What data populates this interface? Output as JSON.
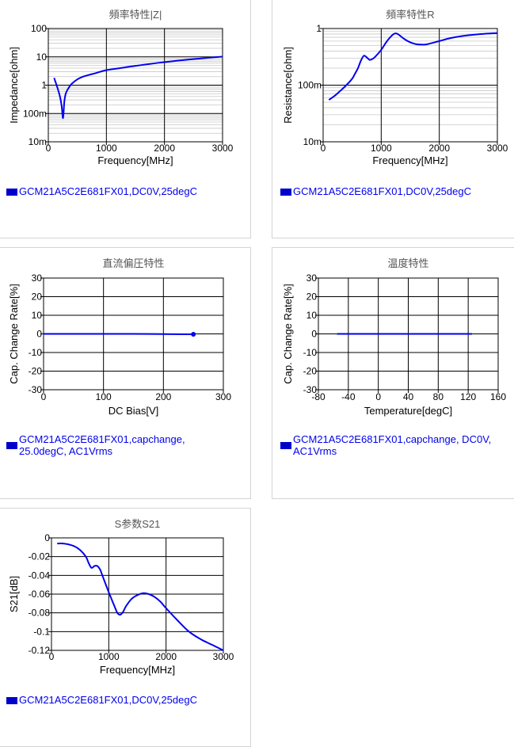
{
  "colors": {
    "line": "#0000ee",
    "legend_swatch": "#0000cc",
    "legend_text": "#0000ee",
    "title": "#555555",
    "axis_text": "#000000",
    "border": "#d4d4d4"
  },
  "chart_data": [
    {
      "id": "impedance",
      "type": "line",
      "title": "頻率特性|Z|",
      "xlabel": "Frequency[MHz]",
      "ylabel": "Impedance[ohm]",
      "yscale": "log",
      "xlim": [
        0,
        3000
      ],
      "ylim": [
        0.01,
        100
      ],
      "xticks": [
        0,
        1000,
        2000,
        3000
      ],
      "xtick_labels": [
        "0",
        "1000",
        "2000",
        "3000"
      ],
      "yticks": [
        0.01,
        0.1,
        1,
        10,
        100
      ],
      "ytick_labels": [
        "10m",
        "100m",
        "1",
        "10",
        "100"
      ],
      "grid": true,
      "legend": "GCM21A5C2E681FX01,DC0V,25degC",
      "x": [
        100,
        150,
        200,
        230,
        250,
        262,
        275,
        300,
        350,
        400,
        500,
        600,
        700,
        800,
        900,
        1000,
        1200,
        1500,
        2000,
        2500,
        3000
      ],
      "y": [
        1.8,
        0.9,
        0.4,
        0.18,
        0.07,
        0.1,
        0.25,
        0.5,
        0.8,
        1.1,
        1.6,
        2.0,
        2.3,
        2.6,
        3.0,
        3.4,
        3.9,
        4.8,
        6.5,
        8.3,
        10.2
      ]
    },
    {
      "id": "resistance",
      "type": "line",
      "title": "頻率特性R",
      "xlabel": "Frequency[MHz]",
      "ylabel": "Resistance[ohm]",
      "yscale": "log",
      "xlim": [
        0,
        3000
      ],
      "ylim": [
        0.01,
        1
      ],
      "xticks": [
        0,
        1000,
        2000,
        3000
      ],
      "xtick_labels": [
        "0",
        "1000",
        "2000",
        "3000"
      ],
      "yticks": [
        0.01,
        0.1,
        1
      ],
      "ytick_labels": [
        "10m",
        "100m",
        "1"
      ],
      "grid": true,
      "legend": "GCM21A5C2E681FX01,DC0V,25degC",
      "x": [
        100,
        200,
        300,
        400,
        500,
        550,
        600,
        650,
        700,
        750,
        800,
        850,
        900,
        1000,
        1100,
        1200,
        1250,
        1300,
        1400,
        1500,
        1600,
        1700,
        1800,
        2000,
        2200,
        2500,
        2800,
        3000
      ],
      "y": [
        0.055,
        0.065,
        0.08,
        0.1,
        0.13,
        0.16,
        0.2,
        0.27,
        0.33,
        0.31,
        0.28,
        0.29,
        0.32,
        0.42,
        0.6,
        0.78,
        0.82,
        0.78,
        0.65,
        0.57,
        0.53,
        0.52,
        0.53,
        0.6,
        0.68,
        0.76,
        0.81,
        0.83
      ]
    },
    {
      "id": "dc-bias",
      "type": "line",
      "title": "直流偏圧特性",
      "xlabel": "DC Bias[V]",
      "ylabel": "Cap. Change Rate[%]",
      "xlim": [
        0,
        300
      ],
      "ylim": [
        -30,
        30
      ],
      "xticks": [
        0,
        100,
        200,
        300
      ],
      "xtick_labels": [
        "0",
        "100",
        "200",
        "300"
      ],
      "yticks": [
        -30,
        -20,
        -10,
        0,
        10,
        20,
        30
      ],
      "ytick_labels": [
        "-30",
        "-20",
        "-10",
        "0",
        "10",
        "20",
        "30"
      ],
      "grid": true,
      "legend": "GCM21A5C2E681FX01,capchange, 25.0degC, AC1Vrms",
      "x": [
        0,
        50,
        100,
        150,
        200,
        250
      ],
      "y": [
        0,
        0,
        0,
        0,
        -0.1,
        -0.2
      ],
      "end_marker": true
    },
    {
      "id": "temperature",
      "type": "line",
      "title": "温度特性",
      "xlabel": "Temperature[degC]",
      "ylabel": "Cap. Change Rate[%]",
      "xlim": [
        -80,
        160
      ],
      "ylim": [
        -30,
        30
      ],
      "xticks": [
        -80,
        -40,
        0,
        40,
        80,
        120,
        160
      ],
      "xtick_labels": [
        "-80",
        "-40",
        "0",
        "40",
        "80",
        "120",
        "160"
      ],
      "yticks": [
        -30,
        -20,
        -10,
        0,
        10,
        20,
        30
      ],
      "ytick_labels": [
        "-30",
        "-20",
        "-10",
        "0",
        "10",
        "20",
        "30"
      ],
      "grid": true,
      "legend": "GCM21A5C2E681FX01,capchange, DC0V, AC1Vrms",
      "x": [
        -55,
        -25,
        0,
        25,
        50,
        85,
        125
      ],
      "y": [
        0,
        0,
        0,
        0,
        0,
        0,
        0
      ]
    },
    {
      "id": "s21",
      "type": "line",
      "title": "S参数S21",
      "xlabel": "Frequency[MHz]",
      "ylabel": "S21[dB]",
      "xlim": [
        0,
        3000
      ],
      "ylim": [
        -0.12,
        0
      ],
      "xticks": [
        0,
        1000,
        2000,
        3000
      ],
      "xtick_labels": [
        "0",
        "1000",
        "2000",
        "3000"
      ],
      "yticks": [
        -0.12,
        -0.1,
        -0.08,
        -0.06,
        -0.04,
        -0.02,
        0
      ],
      "ytick_labels": [
        "-0.12",
        "-0.1",
        "-0.08",
        "-0.06",
        "-0.04",
        "-0.02",
        "0"
      ],
      "grid": true,
      "legend": "GCM21A5C2E681FX01,DC0V,25degC",
      "x": [
        100,
        200,
        300,
        400,
        500,
        600,
        650,
        700,
        750,
        800,
        850,
        900,
        1000,
        1100,
        1150,
        1200,
        1250,
        1300,
        1400,
        1500,
        1600,
        1700,
        1800,
        1900,
        2000,
        2200,
        2400,
        2600,
        2800,
        3000
      ],
      "y": [
        -0.006,
        -0.006,
        -0.007,
        -0.009,
        -0.013,
        -0.02,
        -0.027,
        -0.032,
        -0.03,
        -0.03,
        -0.034,
        -0.042,
        -0.058,
        -0.073,
        -0.08,
        -0.082,
        -0.079,
        -0.073,
        -0.065,
        -0.061,
        -0.059,
        -0.06,
        -0.063,
        -0.068,
        -0.075,
        -0.088,
        -0.1,
        -0.108,
        -0.114,
        -0.12
      ]
    }
  ]
}
